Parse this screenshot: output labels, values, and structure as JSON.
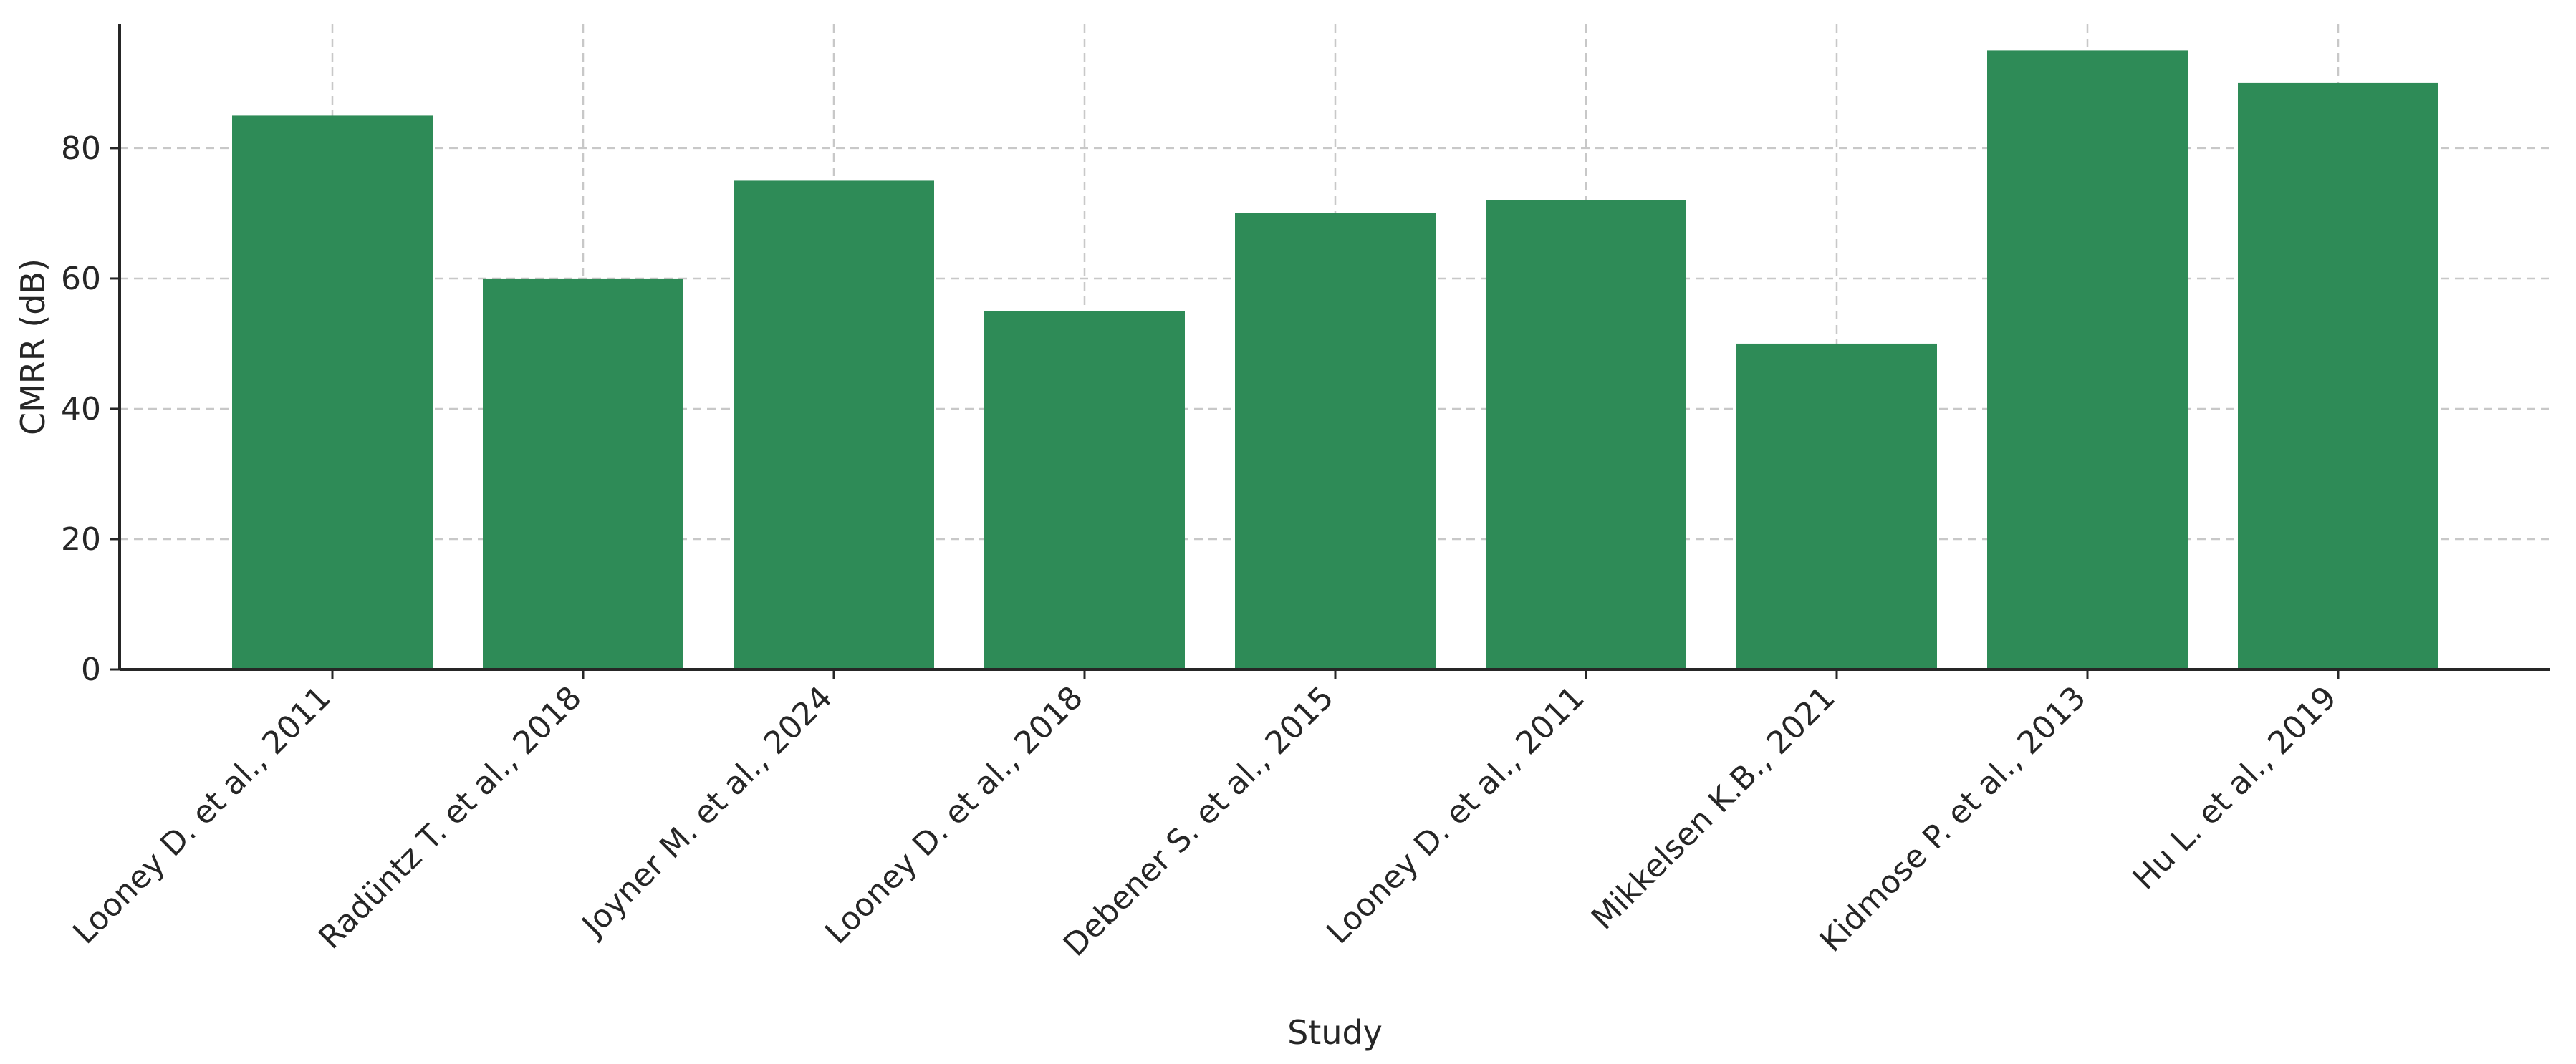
{
  "chart_data": {
    "type": "bar",
    "title": "",
    "xlabel": "Study",
    "ylabel": "CMRR (dB)",
    "ylim": [
      0,
      99
    ],
    "yticks": [
      0,
      20,
      40,
      60,
      80
    ],
    "grid": true,
    "bar_color": "#2e8b57",
    "categories": [
      "Looney D. et al., 2011",
      "Radüntz T. et al., 2018",
      "Joyner M. et al., 2024",
      "Looney D. et al., 2018",
      "Debener S. et al., 2015",
      "Looney D. et al., 2011",
      "Mikkelsen K.B., 2021",
      "Kidmose P. et al., 2013",
      "Hu L. et al., 2019"
    ],
    "values": [
      85,
      60,
      75,
      55,
      70,
      72,
      50,
      95,
      90
    ]
  }
}
